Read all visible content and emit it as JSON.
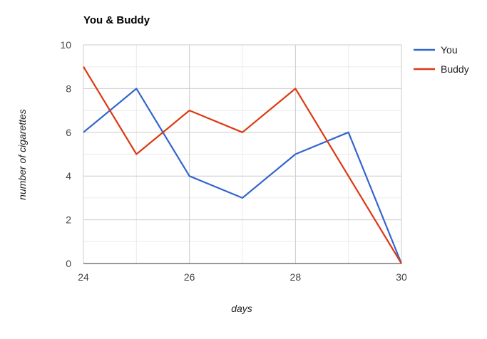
{
  "chart_data": {
    "type": "line",
    "title": "You & Buddy",
    "xlabel": "days",
    "ylabel": "number of cigarettes",
    "x": [
      24,
      25,
      26,
      27,
      28,
      29,
      30
    ],
    "xlim": [
      24,
      30
    ],
    "ylim": [
      0,
      10
    ],
    "x_ticks": [
      24,
      26,
      28,
      30
    ],
    "y_ticks": [
      0,
      2,
      4,
      6,
      8,
      10
    ],
    "x_minor_ticks": [
      25,
      27,
      29
    ],
    "y_minor_ticks": [
      1,
      3,
      5,
      7,
      9
    ],
    "grid": true,
    "legend_position": "right",
    "series": [
      {
        "name": "You",
        "color": "#3366cc",
        "values": [
          6,
          8,
          4,
          3,
          5,
          6,
          0
        ]
      },
      {
        "name": "Buddy",
        "color": "#dc3912",
        "values": [
          9,
          5,
          7,
          6,
          8,
          4,
          0
        ]
      }
    ]
  }
}
